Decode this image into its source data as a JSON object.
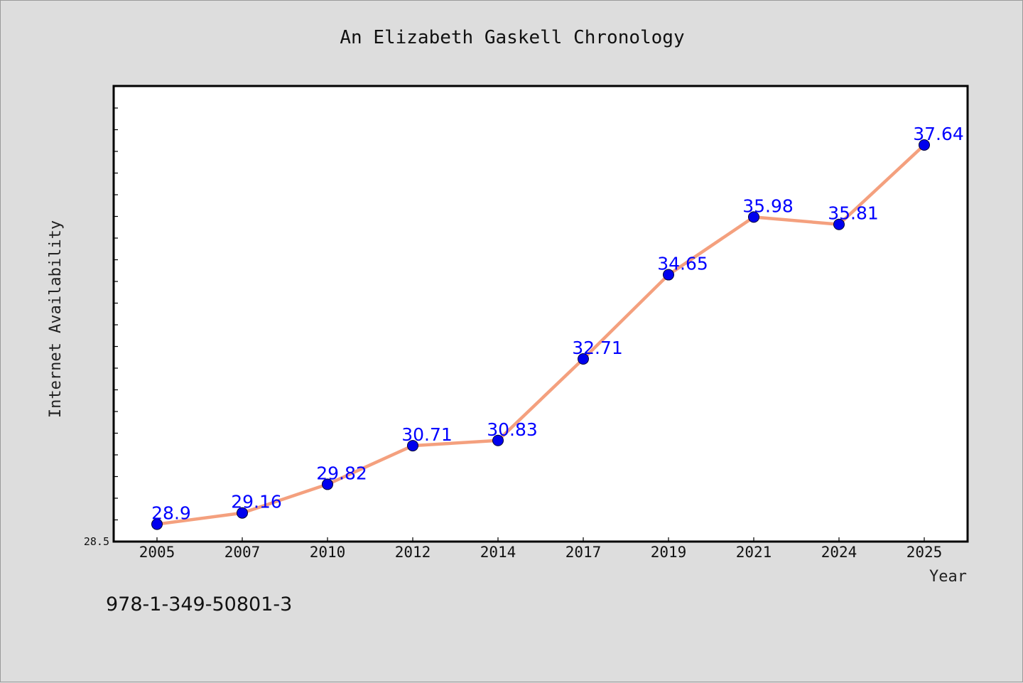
{
  "chart_data": {
    "type": "line",
    "title": "An Elizabeth Gaskell Chronology",
    "xlabel": "Year",
    "ylabel": "Internet Availability",
    "categories": [
      "2005",
      "2007",
      "2010",
      "2012",
      "2014",
      "2017",
      "2019",
      "2021",
      "2024",
      "2025"
    ],
    "series": [
      {
        "values": [
          28.9,
          29.16,
          29.82,
          30.71,
          30.83,
          32.71,
          34.65,
          35.98,
          35.81,
          37.64
        ]
      }
    ],
    "data_labels": [
      "28.9",
      "29.16",
      "29.82",
      "30.71",
      "30.83",
      "32.71",
      "34.65",
      "35.98",
      "35.81",
      "37.64"
    ],
    "ylim": [
      28.5,
      39.0
    ],
    "y_min_label": "28.5",
    "grid": false,
    "legend": "none",
    "colors": {
      "line": "#f4a07e",
      "marker": "#0000ee",
      "label": "#0000ff",
      "plot_bg": "#ffffff",
      "page_bg": "#dddddd"
    }
  },
  "footer": {
    "isbn": "978-1-349-50801-3"
  }
}
